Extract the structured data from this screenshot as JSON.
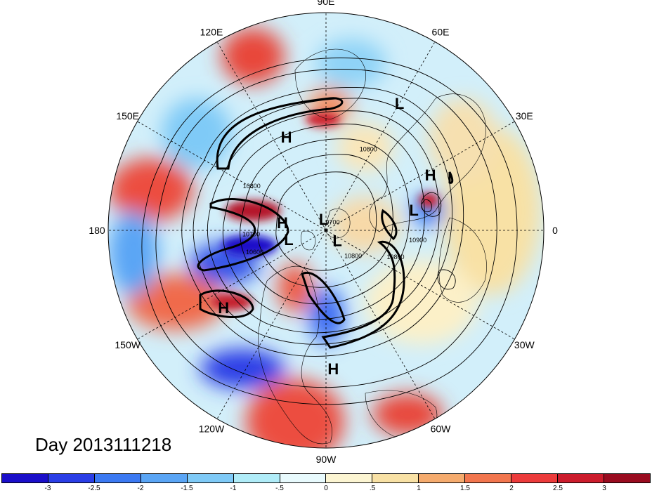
{
  "map": {
    "projection": "north polar stereographic",
    "longitude_labels": [
      {
        "text": "90E",
        "lon_deg": 90
      },
      {
        "text": "60E",
        "lon_deg": 60
      },
      {
        "text": "30E",
        "lon_deg": 30
      },
      {
        "text": "0",
        "lon_deg": 0
      },
      {
        "text": "30W",
        "lon_deg": -30
      },
      {
        "text": "60W",
        "lon_deg": -60
      },
      {
        "text": "90W",
        "lon_deg": -90
      },
      {
        "text": "120W",
        "lon_deg": -120
      },
      {
        "text": "150W",
        "lon_deg": -150
      },
      {
        "text": "180",
        "lon_deg": 180
      },
      {
        "text": "150E",
        "lon_deg": 150
      },
      {
        "text": "120E",
        "lon_deg": 120
      }
    ],
    "pressure_centers": [
      {
        "text": "H",
        "lon_deg": 113,
        "lat_deg": 40
      },
      {
        "text": "L",
        "lon_deg": 60,
        "lat_deg": 22
      },
      {
        "text": "H",
        "lon_deg": 28,
        "lat_deg": 33
      },
      {
        "text": "L",
        "lon_deg": 13,
        "lat_deg": 45
      },
      {
        "text": "H",
        "lon_deg": 170,
        "lat_deg": 67
      },
      {
        "text": "L",
        "lon_deg": 102,
        "lat_deg": 84
      },
      {
        "text": "L",
        "lon_deg": -42,
        "lat_deg": 82
      },
      {
        "text": "L",
        "lon_deg": -166,
        "lat_deg": 70
      },
      {
        "text": "H",
        "lon_deg": -143,
        "lat_deg": 29
      },
      {
        "text": "H",
        "lon_deg": -87,
        "lat_deg": 25
      }
    ],
    "contour_labels": [
      {
        "text": "10800",
        "lon_deg": 62,
        "lat_deg": 45
      },
      {
        "text": "10800",
        "lon_deg": 150,
        "lat_deg": 47
      },
      {
        "text": "10700",
        "lon_deg": -176,
        "lat_deg": 52
      },
      {
        "text": "10600",
        "lon_deg": -162,
        "lat_deg": 52
      },
      {
        "text": "9700",
        "lon_deg": 45,
        "lat_deg": 85
      },
      {
        "text": "10800",
        "lon_deg": -45,
        "lat_deg": 70
      },
      {
        "text": "10900",
        "lon_deg": -7,
        "lat_deg": 44
      },
      {
        "text": "10800",
        "lon_deg": -22,
        "lat_deg": 52
      }
    ]
  },
  "date_label": "Day 2013111218",
  "colorbar": {
    "colors": [
      "#1a0ec9",
      "#2a3ee6",
      "#3b79f2",
      "#5aa5f5",
      "#7fcaf7",
      "#b0ecf8",
      "#e8fafd",
      "#fcf5d2",
      "#f8e1a5",
      "#f5ab6e",
      "#f2764e",
      "#ec3b3b",
      "#cc1c2c",
      "#990b1f"
    ],
    "tick_labels": [
      "-3",
      "-2.5",
      "-2",
      "-1.5",
      "-1",
      "-.5",
      "0",
      ".5",
      "1",
      "1.5",
      "2",
      "2.5",
      "3"
    ]
  }
}
